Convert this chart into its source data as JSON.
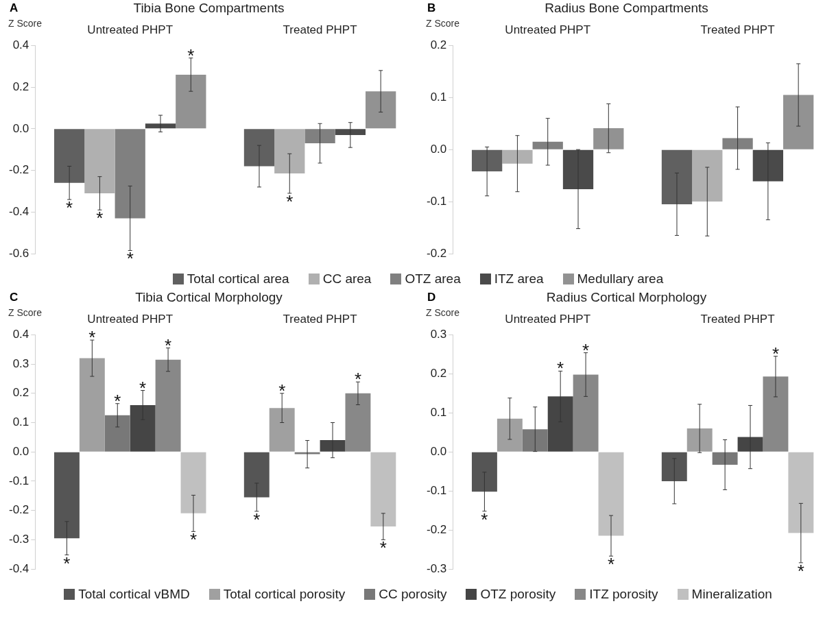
{
  "chart_data": [
    {
      "type": "bar",
      "title": "Tibia Bone Compartments",
      "ylabel": "Z Score",
      "annotations": [
        "A"
      ],
      "categories": [
        "Untreated PHPT",
        "Treated PHPT"
      ],
      "ylim": [
        -0.6,
        0.4
      ],
      "yticks": [
        {
          "value": -0.6,
          "label": "-0.6"
        },
        {
          "value": -0.4,
          "label": "-0.4"
        },
        {
          "value": -0.2,
          "label": "-0.2"
        },
        {
          "value": 0,
          "label": "0.0"
        },
        {
          "value": 0.2,
          "label": "0.2"
        },
        {
          "value": 0.4,
          "label": "0.4"
        }
      ],
      "grid": false,
      "legend": "bottom",
      "series": [
        {
          "name": "Total cortical area",
          "color": "#606060",
          "values": [
            -0.26,
            -0.18
          ],
          "errors": [
            0.08,
            0.1
          ],
          "value_labels": [
            "*",
            null
          ]
        },
        {
          "name": "CC area",
          "color": "#b0b0b0",
          "values": [
            -0.31,
            -0.215
          ],
          "errors": [
            0.08,
            0.095
          ],
          "value_labels": [
            "*",
            "*"
          ]
        },
        {
          "name": "OTZ area",
          "color": "#808080",
          "values": [
            -0.43,
            -0.07
          ],
          "errors": [
            0.155,
            0.095
          ],
          "value_labels": [
            "*",
            null
          ]
        },
        {
          "name": "ITZ area",
          "color": "#4a4a4a",
          "values": [
            0.025,
            -0.03
          ],
          "errors": [
            0.04,
            0.06
          ],
          "value_labels": [
            null,
            null
          ]
        },
        {
          "name": "Medullary area",
          "color": "#929292",
          "values": [
            0.26,
            0.18
          ],
          "errors": [
            0.08,
            0.1
          ],
          "value_labels": [
            "*",
            null
          ]
        }
      ]
    },
    {
      "type": "bar",
      "title": "Radius Bone Compartments",
      "ylabel": "Z Score",
      "annotations": [
        "B"
      ],
      "categories": [
        "Untreated PHPT",
        "Treated PHPT"
      ],
      "ylim": [
        -0.2,
        0.2
      ],
      "yticks": [
        {
          "value": -0.2,
          "label": "-0.2"
        },
        {
          "value": -0.1,
          "label": "-0.1"
        },
        {
          "value": 0,
          "label": "0.0"
        },
        {
          "value": 0.1,
          "label": "0.1"
        },
        {
          "value": 0.2,
          "label": "0.2"
        }
      ],
      "grid": false,
      "series": [
        {
          "color": "#606060",
          "values": [
            -0.042,
            -0.105
          ],
          "errors": [
            0.047,
            0.06
          ]
        },
        {
          "color": "#b0b0b0",
          "values": [
            -0.027,
            -0.1
          ],
          "errors": [
            0.054,
            0.066
          ]
        },
        {
          "color": "#808080",
          "values": [
            0.015,
            0.022
          ],
          "errors": [
            0.045,
            0.06
          ]
        },
        {
          "color": "#4a4a4a",
          "values": [
            -0.076,
            -0.061
          ],
          "errors": [
            0.076,
            0.074
          ]
        },
        {
          "color": "#929292",
          "values": [
            0.041,
            0.105
          ],
          "errors": [
            0.047,
            0.06
          ]
        }
      ]
    },
    {
      "type": "bar",
      "title": "Tibia Cortical Morphology",
      "ylabel": "Z Score",
      "annotations": [
        "C"
      ],
      "categories": [
        "Untreated PHPT",
        "Treated PHPT"
      ],
      "ylim": [
        -0.4,
        0.4
      ],
      "yticks": [
        {
          "value": -0.4,
          "label": "-0.4"
        },
        {
          "value": -0.3,
          "label": "-0.3"
        },
        {
          "value": -0.2,
          "label": "-0.2"
        },
        {
          "value": -0.1,
          "label": "-0.1"
        },
        {
          "value": 0,
          "label": "0.0"
        },
        {
          "value": 0.1,
          "label": "0.1"
        },
        {
          "value": 0.2,
          "label": "0.2"
        },
        {
          "value": 0.3,
          "label": "0.3"
        },
        {
          "value": 0.4,
          "label": "0.4"
        }
      ],
      "grid": false,
      "legend": "bottom",
      "series": [
        {
          "name": "Total cortical vBMD",
          "color": "#555555",
          "values": [
            -0.295,
            -0.155
          ],
          "errors": [
            0.057,
            0.048
          ],
          "value_labels": [
            "*",
            "*"
          ]
        },
        {
          "name": "Total cortical porosity",
          "color": "#a0a0a0",
          "values": [
            0.32,
            0.15
          ],
          "errors": [
            0.062,
            0.05
          ],
          "value_labels": [
            "*",
            "*"
          ]
        },
        {
          "name": "CC porosity",
          "color": "#787878",
          "values": [
            0.125,
            -0.008
          ],
          "errors": [
            0.04,
            0.047
          ],
          "value_labels": [
            "*",
            null
          ]
        },
        {
          "name": "OTZ porosity",
          "color": "#454545",
          "values": [
            0.16,
            0.04
          ],
          "errors": [
            0.05,
            0.06
          ],
          "value_labels": [
            "*",
            null
          ]
        },
        {
          "name": "ITZ porosity",
          "color": "#888888",
          "values": [
            0.315,
            0.2
          ],
          "errors": [
            0.04,
            0.039
          ],
          "value_labels": [
            "*",
            "*"
          ]
        },
        {
          "name": "Mineralization",
          "color": "#c0c0c0",
          "values": [
            -0.21,
            -0.255
          ],
          "errors": [
            0.062,
            0.045
          ],
          "value_labels": [
            "*",
            "*"
          ]
        }
      ]
    },
    {
      "type": "bar",
      "title": "Radius Cortical Morphology",
      "ylabel": "Z Score",
      "annotations": [
        "D"
      ],
      "categories": [
        "Untreated PHPT",
        "Treated PHPT"
      ],
      "ylim": [
        -0.3,
        0.3
      ],
      "yticks": [
        {
          "value": -0.3,
          "label": "-0.3"
        },
        {
          "value": -0.2,
          "label": "-0.2"
        },
        {
          "value": -0.1,
          "label": "-0.1"
        },
        {
          "value": 0,
          "label": "0.0"
        },
        {
          "value": 0.1,
          "label": "0.1"
        },
        {
          "value": 0.2,
          "label": "0.2"
        },
        {
          "value": 0.3,
          "label": "0.3"
        }
      ],
      "grid": false,
      "series": [
        {
          "color": "#555555",
          "values": [
            -0.102,
            -0.075
          ],
          "errors": [
            0.05,
            0.058
          ],
          "value_labels": [
            "*",
            null
          ]
        },
        {
          "color": "#a0a0a0",
          "values": [
            0.085,
            0.06
          ],
          "errors": [
            0.053,
            0.062
          ],
          "value_labels": [
            null,
            null
          ]
        },
        {
          "color": "#787878",
          "values": [
            0.058,
            -0.033
          ],
          "errors": [
            0.057,
            0.064
          ],
          "value_labels": [
            null,
            null
          ]
        },
        {
          "color": "#454545",
          "values": [
            0.142,
            0.038
          ],
          "errors": [
            0.065,
            0.081
          ],
          "value_labels": [
            "*",
            null
          ]
        },
        {
          "color": "#888888",
          "values": [
            0.198,
            0.193
          ],
          "errors": [
            0.056,
            0.052
          ],
          "value_labels": [
            "*",
            "*"
          ]
        },
        {
          "color": "#c0c0c0",
          "values": [
            -0.215,
            -0.208
          ],
          "errors": [
            0.052,
            0.076
          ],
          "value_labels": [
            "*",
            "*"
          ]
        }
      ]
    }
  ]
}
